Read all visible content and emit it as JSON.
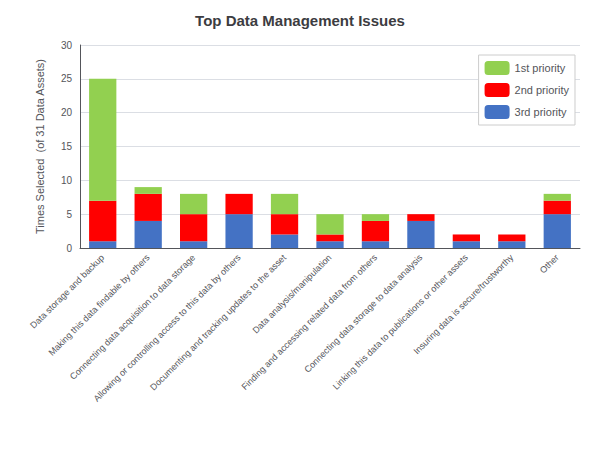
{
  "chart_data": {
    "type": "bar",
    "title": "Top Data Management Issues",
    "ylabel": "Times Selected  (of 31 Data Assets)",
    "categories": [
      "Data storage and backup",
      "Making this data findable by others",
      "Connecting data acquisition to data storage",
      "Allowing or controlling access to this data by others",
      "Documenting and tracking updates to the asset",
      "Data analysis/manipulation",
      "Finding and accessing related data from others",
      "Connecting data storage to data analysis",
      "Linking this data to publications or other assets",
      "Insuring data is secure/trustworthy",
      "Other"
    ],
    "series": [
      {
        "name": "3rd priority",
        "color": "#4472c4",
        "values": [
          1,
          4,
          1,
          5,
          2,
          1,
          1,
          4,
          1,
          1,
          5
        ]
      },
      {
        "name": "2nd priority",
        "color": "#ff0000",
        "values": [
          6,
          4,
          4,
          3,
          3,
          1,
          3,
          1,
          1,
          1,
          2
        ]
      },
      {
        "name": "1st priority",
        "color": "#92d050",
        "values": [
          18,
          1,
          3,
          0,
          3,
          3,
          1,
          0,
          0,
          0,
          1
        ]
      }
    ],
    "stacked": true,
    "ylim": [
      0,
      30
    ],
    "yticks": [
      0,
      5,
      10,
      15,
      20,
      25,
      30
    ],
    "grid": true,
    "legend": "upper right"
  }
}
